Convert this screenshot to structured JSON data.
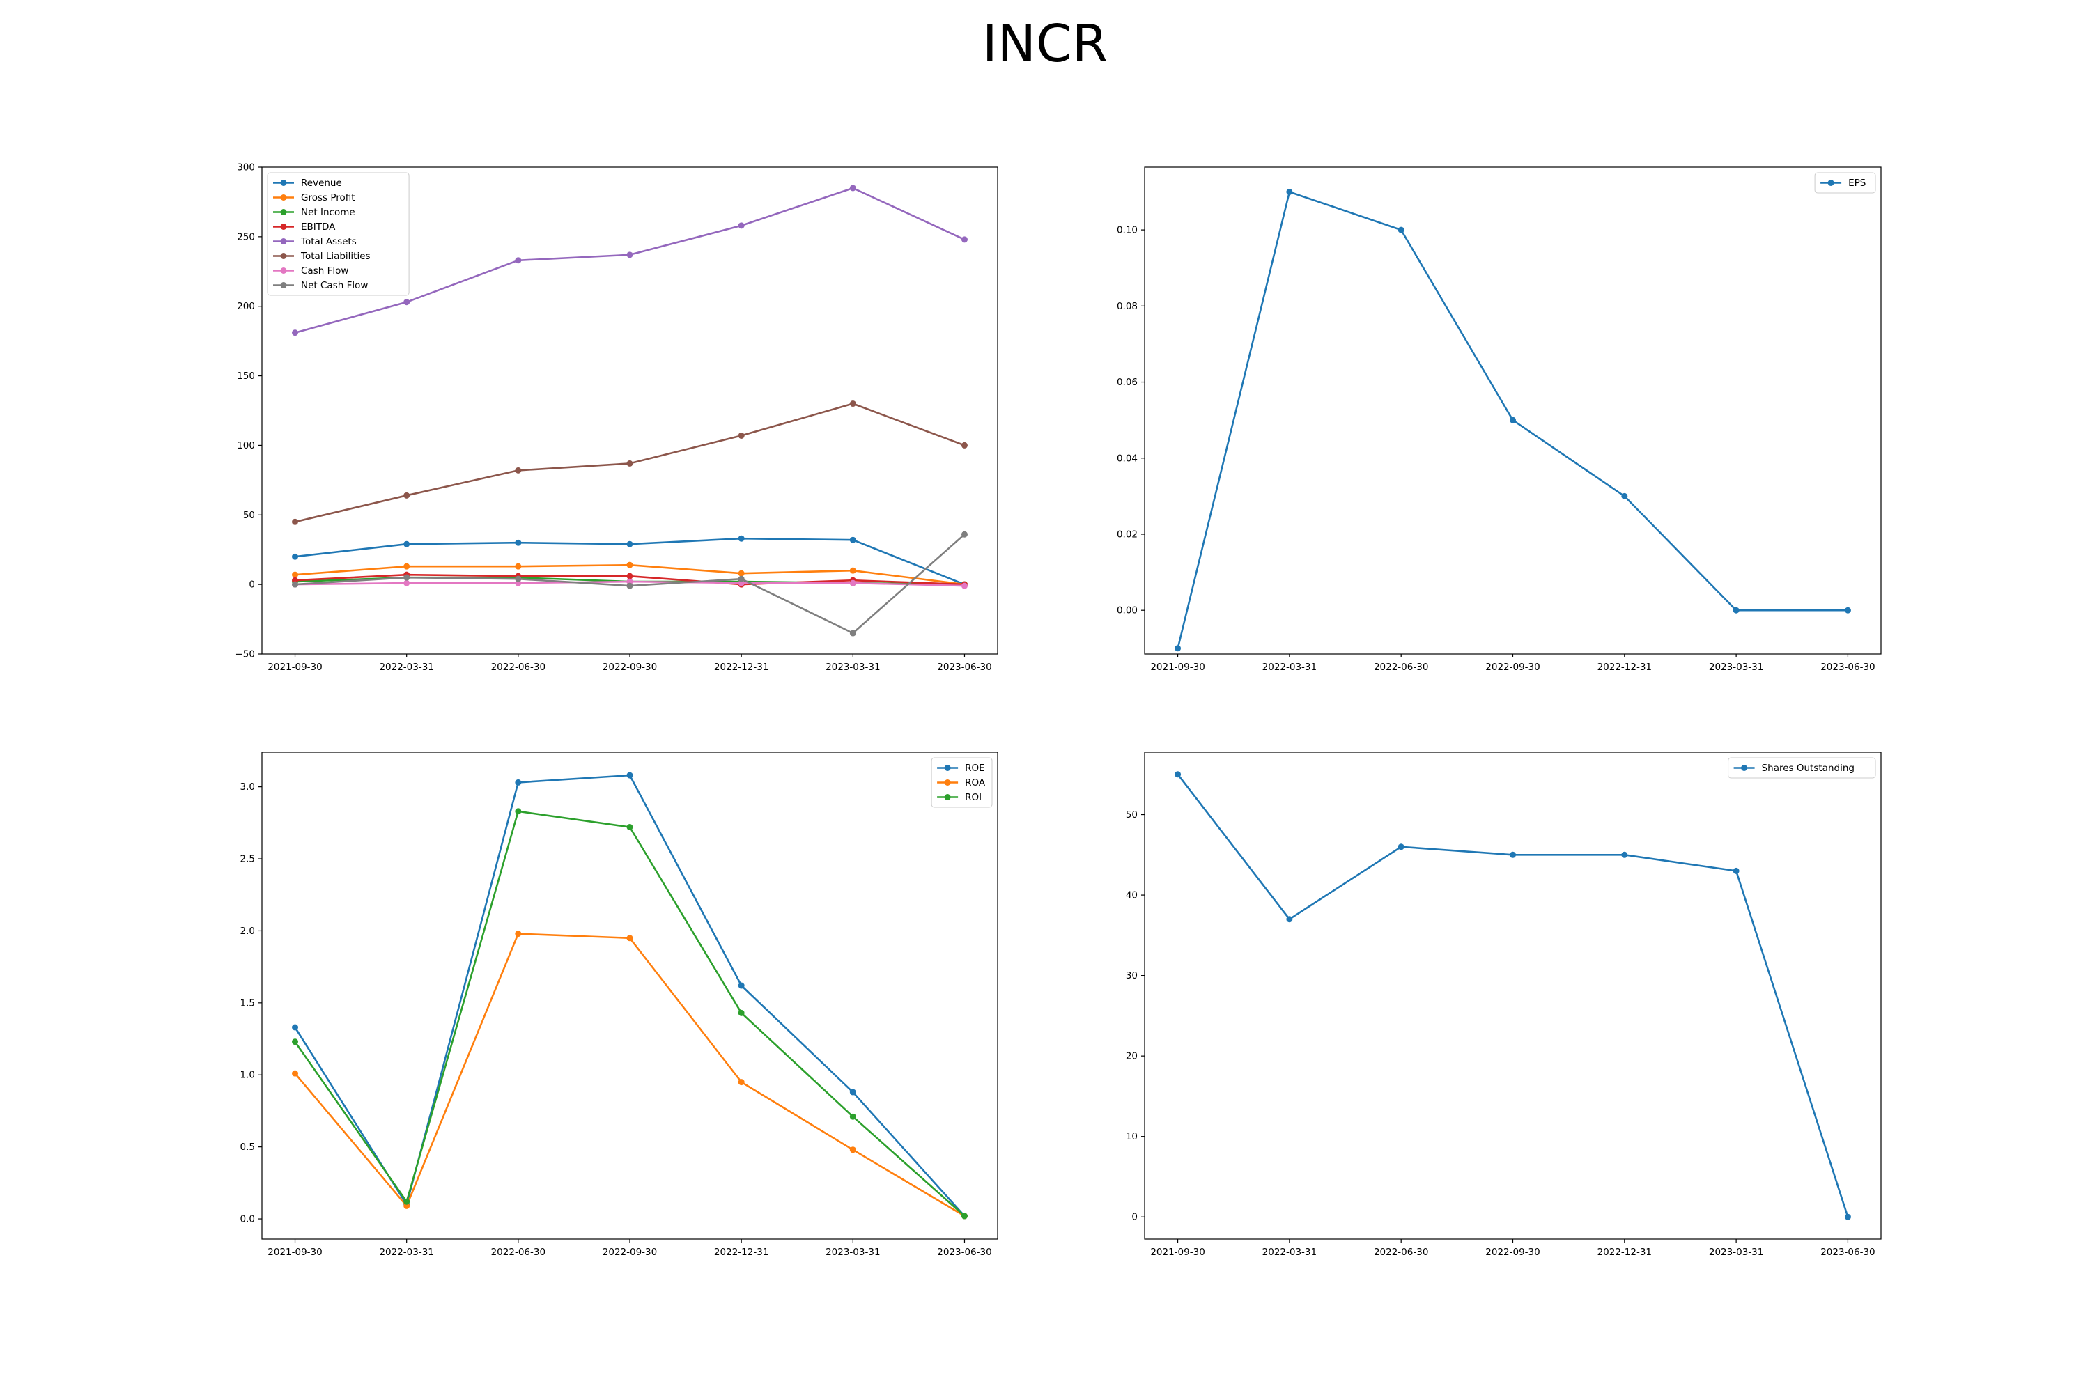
{
  "title": "INCR",
  "colors": {
    "c0": "#1f77b4",
    "c1": "#ff7f0e",
    "c2": "#2ca02c",
    "c3": "#d62728",
    "c4": "#9467bd",
    "c5": "#8c564b",
    "c6": "#e377c2",
    "c7": "#7f7f7f"
  },
  "chart_data": [
    {
      "id": "financials",
      "type": "line",
      "categories": [
        "2021-09-30",
        "2022-03-31",
        "2022-06-30",
        "2022-09-30",
        "2022-12-31",
        "2023-03-31",
        "2023-06-30"
      ],
      "ylim": [
        -50,
        300
      ],
      "yticks": [
        -50,
        0,
        50,
        100,
        150,
        200,
        250,
        300
      ],
      "yticklabels": [
        "−50",
        "0",
        "50",
        "100",
        "150",
        "200",
        "250",
        "300"
      ],
      "legend": "upper-left",
      "series": [
        {
          "name": "Revenue",
          "color": "#1f77b4",
          "values": [
            20,
            29,
            30,
            29,
            33,
            32,
            0
          ]
        },
        {
          "name": "Gross Profit",
          "color": "#ff7f0e",
          "values": [
            7,
            13,
            13,
            14,
            8,
            10,
            0
          ]
        },
        {
          "name": "Net Income",
          "color": "#2ca02c",
          "values": [
            2,
            5,
            5,
            2,
            2,
            1,
            0
          ]
        },
        {
          "name": "EBITDA",
          "color": "#d62728",
          "values": [
            3,
            7,
            6,
            6,
            0,
            3,
            0
          ]
        },
        {
          "name": "Total Assets",
          "color": "#9467bd",
          "values": [
            181,
            203,
            233,
            237,
            258,
            285,
            248
          ]
        },
        {
          "name": "Total Liabilities",
          "color": "#8c564b",
          "values": [
            45,
            64,
            82,
            87,
            107,
            130,
            100
          ]
        },
        {
          "name": "Cash Flow",
          "color": "#e377c2",
          "values": [
            0,
            1,
            1,
            2,
            1,
            1,
            -1
          ]
        },
        {
          "name": "Net Cash Flow",
          "color": "#7f7f7f",
          "values": [
            0,
            5,
            4,
            -1,
            4,
            -35,
            36
          ]
        }
      ]
    },
    {
      "id": "eps",
      "type": "line",
      "categories": [
        "2021-09-30",
        "2022-03-31",
        "2022-06-30",
        "2022-09-30",
        "2022-12-31",
        "2023-03-31",
        "2023-06-30"
      ],
      "ylim": [
        -0.0115,
        0.1165
      ],
      "yticks": [
        0,
        0.02,
        0.04,
        0.06,
        0.08,
        0.1
      ],
      "yticklabels": [
        "0.00",
        "0.02",
        "0.04",
        "0.06",
        "0.08",
        "0.10"
      ],
      "legend": "upper-right",
      "series": [
        {
          "name": "EPS",
          "color": "#1f77b4",
          "values": [
            -0.01,
            0.11,
            0.1,
            0.05,
            0.03,
            0.0,
            0.0
          ]
        }
      ]
    },
    {
      "id": "returns",
      "type": "line",
      "categories": [
        "2021-09-30",
        "2022-03-31",
        "2022-06-30",
        "2022-09-30",
        "2022-12-31",
        "2023-03-31",
        "2023-06-30"
      ],
      "ylim": [
        -0.14,
        3.24
      ],
      "yticks": [
        0,
        0.5,
        1,
        1.5,
        2,
        2.5,
        3
      ],
      "yticklabels": [
        "0.0",
        "0.5",
        "1.0",
        "1.5",
        "2.0",
        "2.5",
        "3.0"
      ],
      "legend": "upper-right",
      "series": [
        {
          "name": "ROE",
          "color": "#1f77b4",
          "values": [
            1.33,
            0.1,
            3.03,
            3.08,
            1.62,
            0.88,
            0.02
          ]
        },
        {
          "name": "ROA",
          "color": "#ff7f0e",
          "values": [
            1.01,
            0.09,
            1.98,
            1.95,
            0.95,
            0.48,
            0.02
          ]
        },
        {
          "name": "ROI",
          "color": "#2ca02c",
          "values": [
            1.23,
            0.12,
            2.83,
            2.72,
            1.43,
            0.71,
            0.02
          ]
        }
      ]
    },
    {
      "id": "shares",
      "type": "line",
      "categories": [
        "2021-09-30",
        "2022-03-31",
        "2022-06-30",
        "2022-09-30",
        "2022-12-31",
        "2023-03-31",
        "2023-06-30"
      ],
      "ylim": [
        -2.75,
        57.75
      ],
      "yticks": [
        0,
        10,
        20,
        30,
        40,
        50
      ],
      "yticklabels": [
        "0",
        "10",
        "20",
        "30",
        "40",
        "50"
      ],
      "legend": "upper-right",
      "series": [
        {
          "name": "Shares Outstanding",
          "color": "#1f77b4",
          "values": [
            55,
            37,
            46,
            45,
            45,
            43,
            0
          ]
        }
      ]
    }
  ]
}
